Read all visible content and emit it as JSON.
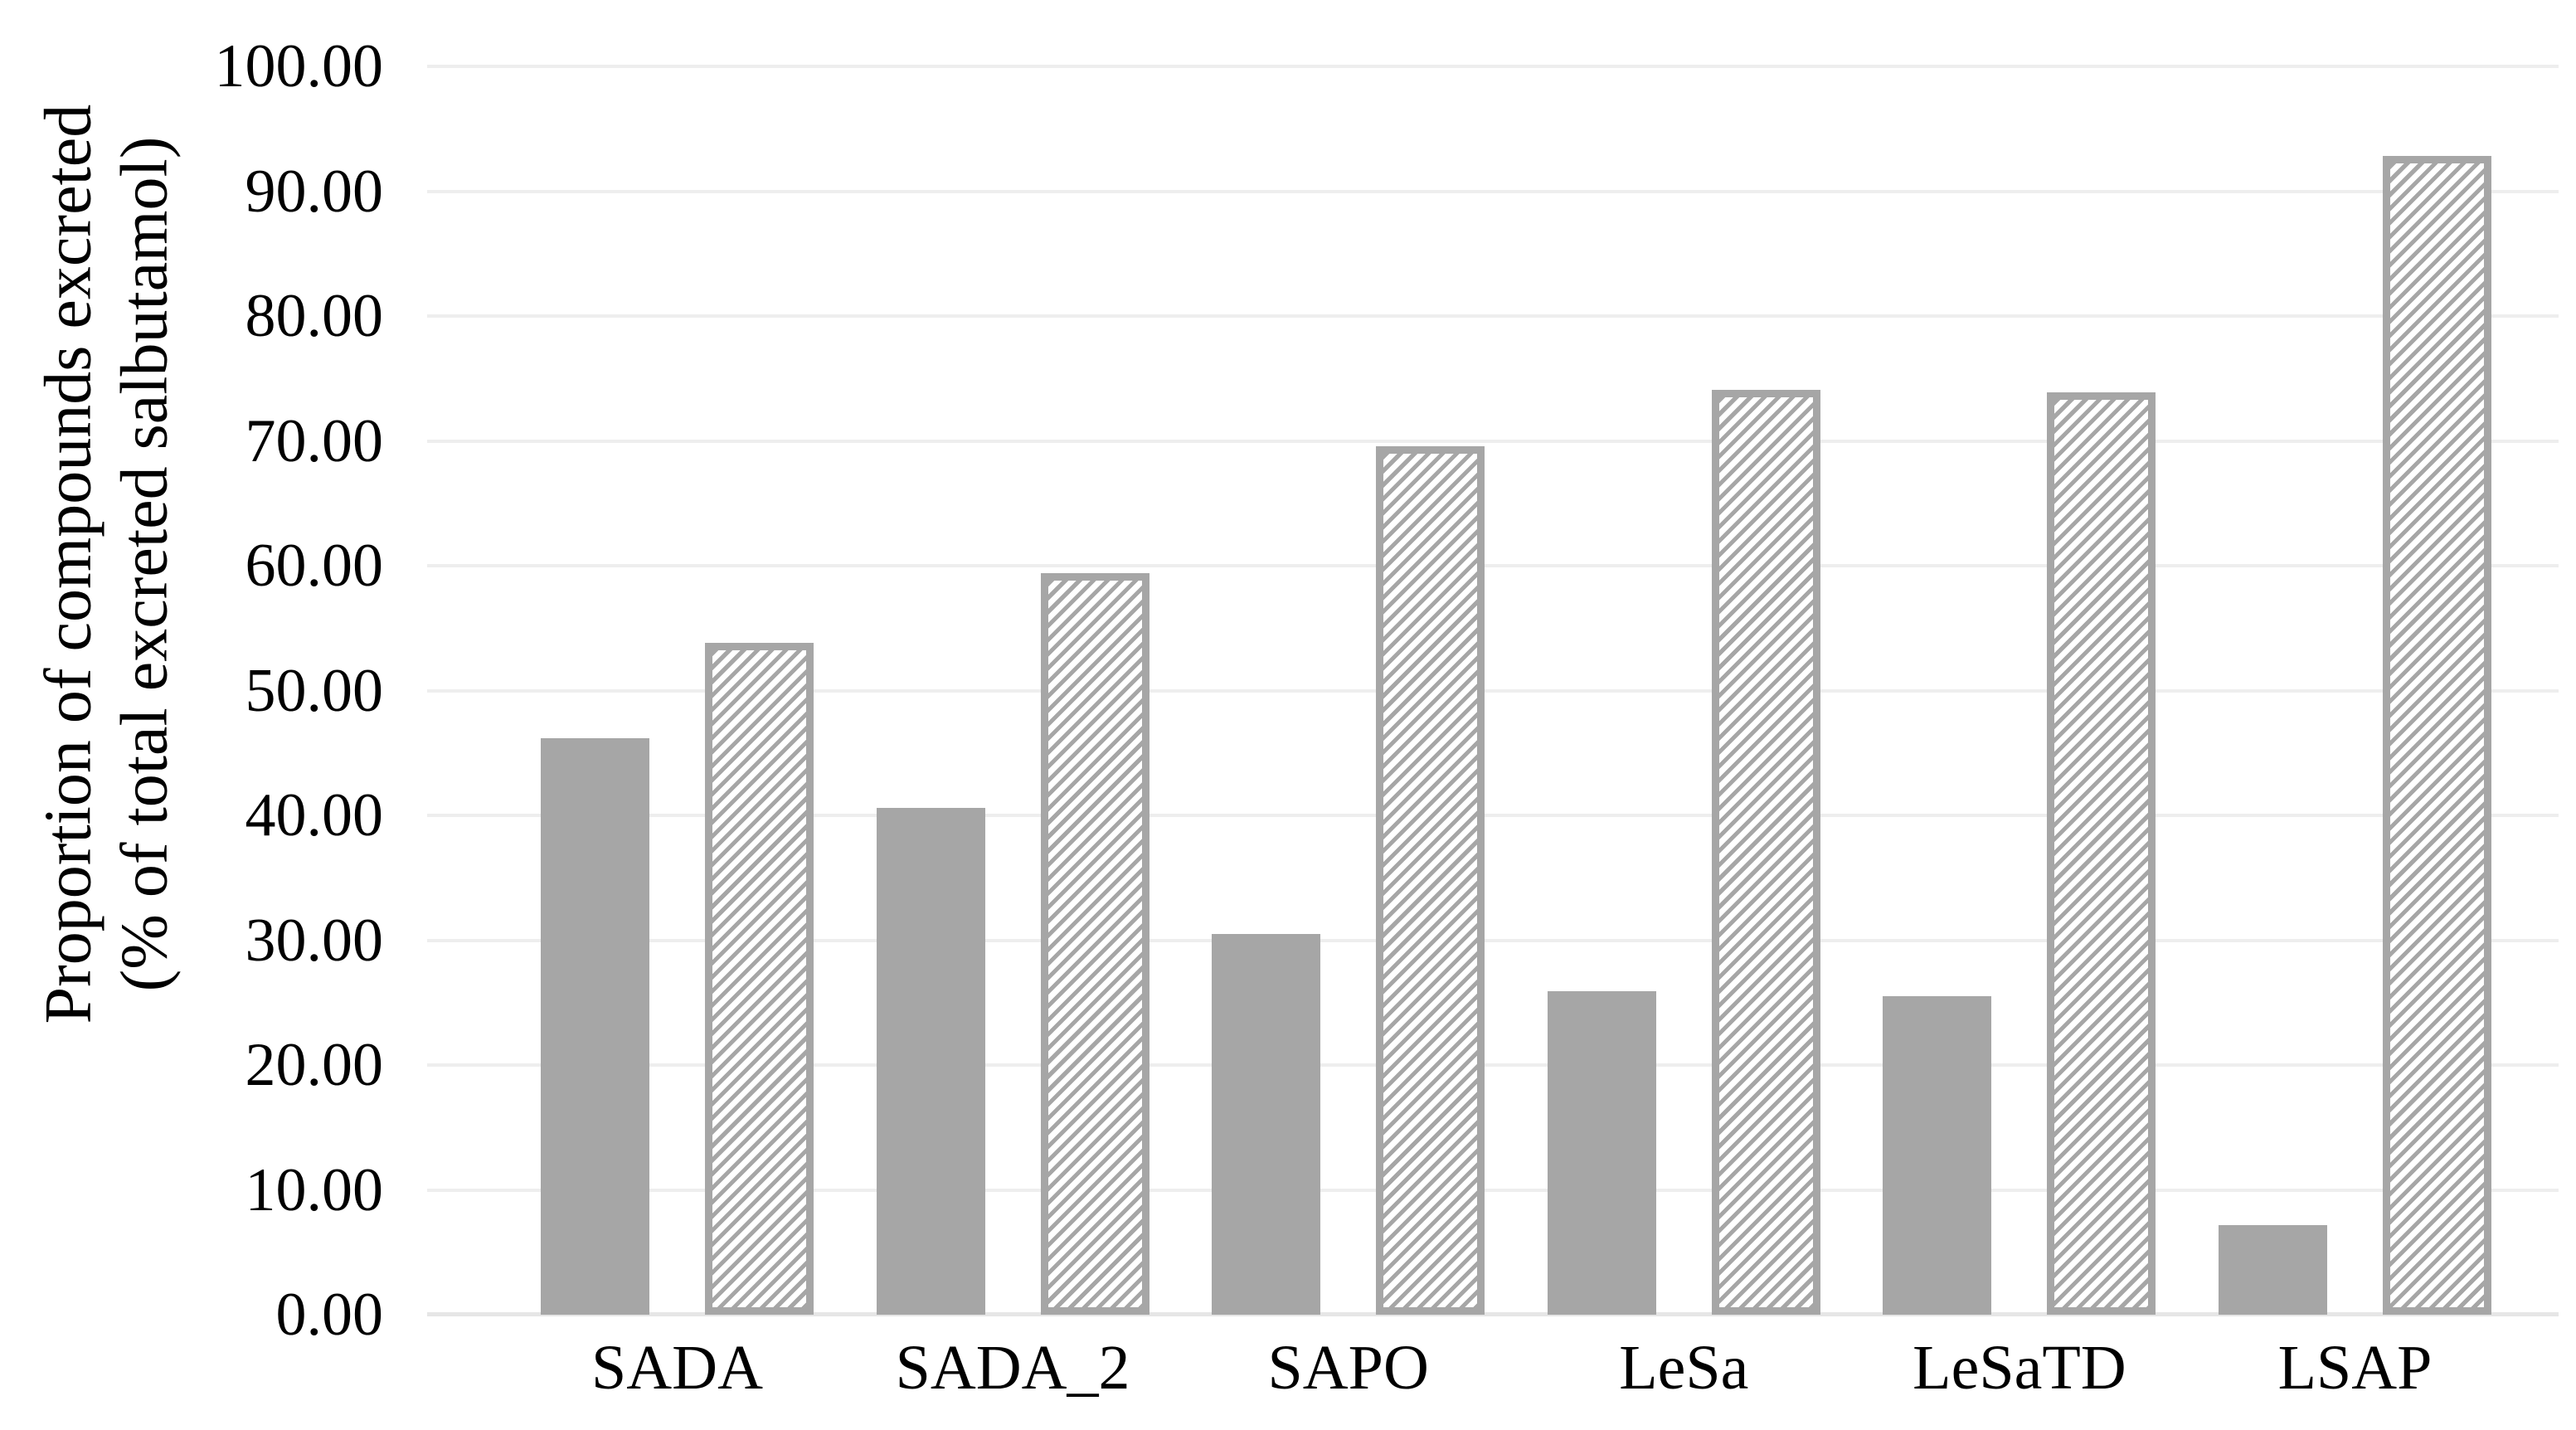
{
  "figure": {
    "background": "#ffffff"
  },
  "y_axis": {
    "title_line1": "Proportion of compounds excreted",
    "title_line2": "(% of total excreted salbutamol)",
    "tick_labels": [
      "0.00",
      "10.00",
      "20.00",
      "30.00",
      "40.00",
      "50.00",
      "60.00",
      "70.00",
      "80.00",
      "90.00",
      "100.00"
    ]
  },
  "chart_data": {
    "type": "bar",
    "title": "",
    "xlabel": "",
    "ylabel": "Proportion of compounds excreted (% of total excreted salbutamol)",
    "categories": [
      "SADA",
      "SADA_2",
      "SAPO",
      "LeSa",
      "LeSaTD",
      "LSAP"
    ],
    "series": [
      {
        "name": "solid-gray",
        "style": "solid",
        "values": [
          46.2,
          40.6,
          30.5,
          25.9,
          25.5,
          7.2
        ]
      },
      {
        "name": "hatched",
        "style": "hatched",
        "values": [
          53.8,
          59.4,
          69.6,
          74.1,
          73.9,
          92.8
        ]
      }
    ],
    "ylim": [
      0,
      100
    ],
    "ytick_step": 10,
    "grid": "horizontal",
    "legend_position": "none",
    "colors": {
      "solid_fill": "#a6a6a6",
      "hatch_stroke": "#a6a6a6",
      "hatch_background": "#ffffff",
      "gridline": "#eeeeee",
      "text": "#000000"
    }
  }
}
